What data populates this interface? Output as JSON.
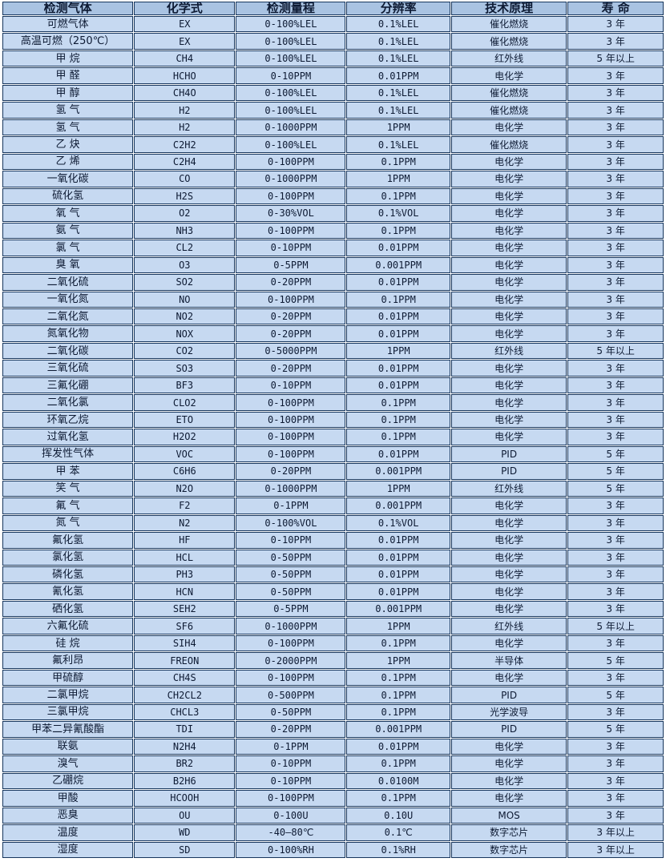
{
  "colors": {
    "header_bg": "#a9c3e2",
    "row_bg": "#c6d9f1",
    "border": "#17365d",
    "text": "#0d1a33"
  },
  "table": {
    "headers": [
      "检测气体",
      "化学式",
      "检测量程",
      "分辨率",
      "技术原理",
      "寿 命"
    ],
    "column_keys": [
      "gas-name",
      "chemical-formula",
      "detection-range",
      "resolution",
      "technology-principle",
      "lifespan"
    ],
    "column_widths_pct": [
      19.9,
      15.4,
      16.7,
      15.8,
      17.6,
      14.6
    ],
    "rows": [
      [
        "可燃气体",
        "EX",
        "0-100%LEL",
        "0.1%LEL",
        "催化燃烧",
        "3 年"
      ],
      [
        "高温可燃（250℃）",
        "EX",
        "0-100%LEL",
        "0.1%LEL",
        "催化燃烧",
        "3 年"
      ],
      [
        "甲 烷",
        "CH4",
        "0-100%LEL",
        "0.1%LEL",
        "红外线",
        "5 年以上"
      ],
      [
        "甲 醛",
        "HCHO",
        "0-10PPM",
        "0.01PPM",
        "电化学",
        "3 年"
      ],
      [
        "甲 醇",
        "CH4O",
        "0-100%LEL",
        "0.1%LEL",
        "催化燃烧",
        "3 年"
      ],
      [
        "氢 气",
        "H2",
        "0-100%LEL",
        "0.1%LEL",
        "催化燃烧",
        "3 年"
      ],
      [
        "氢 气",
        "H2",
        "0-1000PPM",
        "1PPM",
        "电化学",
        "3 年"
      ],
      [
        "乙 炔",
        "C2H2",
        "0-100%LEL",
        "0.1%LEL",
        "催化燃烧",
        "3 年"
      ],
      [
        "乙 烯",
        "C2H4",
        "0-100PPM",
        "0.1PPM",
        "电化学",
        "3 年"
      ],
      [
        "一氧化碳",
        "CO",
        "0-1000PPM",
        "1PPM",
        "电化学",
        "3 年"
      ],
      [
        "硫化氢",
        "H2S",
        "0-100PPM",
        "0.1PPM",
        "电化学",
        "3 年"
      ],
      [
        "氧 气",
        "O2",
        "0-30%VOL",
        "0.1%VOL",
        "电化学",
        "3 年"
      ],
      [
        "氨 气",
        "NH3",
        "0-100PPM",
        "0.1PPM",
        "电化学",
        "3 年"
      ],
      [
        "氯 气",
        "CL2",
        "0-10PPM",
        "0.01PPM",
        "电化学",
        "3 年"
      ],
      [
        "臭 氧",
        "O3",
        "0-5PPM",
        "0.001PPM",
        "电化学",
        "3 年"
      ],
      [
        "二氧化硫",
        "SO2",
        "0-20PPM",
        "0.01PPM",
        "电化学",
        "3 年"
      ],
      [
        "一氧化氮",
        "NO",
        "0-100PPM",
        "0.1PPM",
        "电化学",
        "3 年"
      ],
      [
        "二氧化氮",
        "NO2",
        "0-20PPM",
        "0.01PPM",
        "电化学",
        "3 年"
      ],
      [
        "氮氧化物",
        "NOX",
        "0-20PPM",
        "0.01PPM",
        "电化学",
        "3 年"
      ],
      [
        "二氧化碳",
        "CO2",
        "0-5000PPM",
        "1PPM",
        "红外线",
        "5 年以上"
      ],
      [
        "三氧化硫",
        "SO3",
        "0-20PPM",
        "0.01PPM",
        "电化学",
        "3 年"
      ],
      [
        "三氟化硼",
        "BF3",
        "0-10PPM",
        "0.01PPM",
        "电化学",
        "3 年"
      ],
      [
        "二氧化氯",
        "CLO2",
        "0-100PPM",
        "0.1PPM",
        "电化学",
        "3 年"
      ],
      [
        "环氧乙烷",
        "ETO",
        "0-100PPM",
        "0.1PPM",
        "电化学",
        "3 年"
      ],
      [
        "过氧化氢",
        "H2O2",
        "0-100PPM",
        "0.1PPM",
        "电化学",
        "3 年"
      ],
      [
        "挥发性气体",
        "VOC",
        "0-100PPM",
        "0.01PPM",
        "PID",
        "5 年"
      ],
      [
        "甲 苯",
        "C6H6",
        "0-20PPM",
        "0.001PPM",
        "PID",
        "5 年"
      ],
      [
        "笑 气",
        "N2O",
        "0-1000PPM",
        "1PPM",
        "红外线",
        "5 年"
      ],
      [
        "氟 气",
        "F2",
        "0-1PPM",
        "0.001PPM",
        "电化学",
        "3 年"
      ],
      [
        "氮 气",
        "N2",
        "0-100%VOL",
        "0.1%VOL",
        "电化学",
        "3 年"
      ],
      [
        "氟化氢",
        "HF",
        "0-10PPM",
        "0.01PPM",
        "电化学",
        "3 年"
      ],
      [
        "氯化氢",
        "HCL",
        "0-50PPM",
        "0.01PPM",
        "电化学",
        "3 年"
      ],
      [
        "磷化氢",
        "PH3",
        "0-50PPM",
        "0.01PPM",
        "电化学",
        "3 年"
      ],
      [
        "氰化氢",
        "HCN",
        "0-50PPM",
        "0.01PPM",
        "电化学",
        "3 年"
      ],
      [
        "硒化氢",
        "SEH2",
        "0-5PPM",
        "0.001PPM",
        "电化学",
        "3 年"
      ],
      [
        "六氟化硫",
        "SF6",
        "0-1000PPM",
        "1PPM",
        "红外线",
        "5 年以上"
      ],
      [
        "硅 烷",
        "SIH4",
        "0-100PPM",
        "0.1PPM",
        "电化学",
        "3 年"
      ],
      [
        "氟利昂",
        "FREON",
        "0-2000PPM",
        "1PPM",
        "半导体",
        "5 年"
      ],
      [
        "甲硫醇",
        "CH4S",
        "0-100PPM",
        "0.1PPM",
        "电化学",
        "3 年"
      ],
      [
        "二氯甲烷",
        "CH2CL2",
        "0-500PPM",
        "0.1PPM",
        "PID",
        "5 年"
      ],
      [
        "三氯甲烷",
        "CHCL3",
        "0-50PPM",
        "0.1PPM",
        "光学波导",
        "3 年"
      ],
      [
        "甲苯二异氰酸酯",
        "TDI",
        "0-20PPM",
        "0.001PPM",
        "PID",
        "5 年"
      ],
      [
        "联氨",
        "N2H4",
        "0-1PPM",
        "0.01PPM",
        "电化学",
        "3 年"
      ],
      [
        "溴气",
        "BR2",
        "0-10PPM",
        "0.1PPM",
        "电化学",
        "3 年"
      ],
      [
        "乙硼烷",
        "B2H6",
        "0-10PPM",
        "0.0100M",
        "电化学",
        "3 年"
      ],
      [
        "甲酸",
        "HCOOH",
        "0-100PPM",
        "0.1PPM",
        "电化学",
        "3 年"
      ],
      [
        "恶臭",
        "OU",
        "0-100U",
        "0.10U",
        "MOS",
        "3 年"
      ],
      [
        "温度",
        "WD",
        "-40—80℃",
        "0.1℃",
        "数字芯片",
        "3 年以上"
      ],
      [
        "湿度",
        "SD",
        "0-100%RH",
        "0.1%RH",
        "数字芯片",
        "3 年以上"
      ]
    ]
  }
}
